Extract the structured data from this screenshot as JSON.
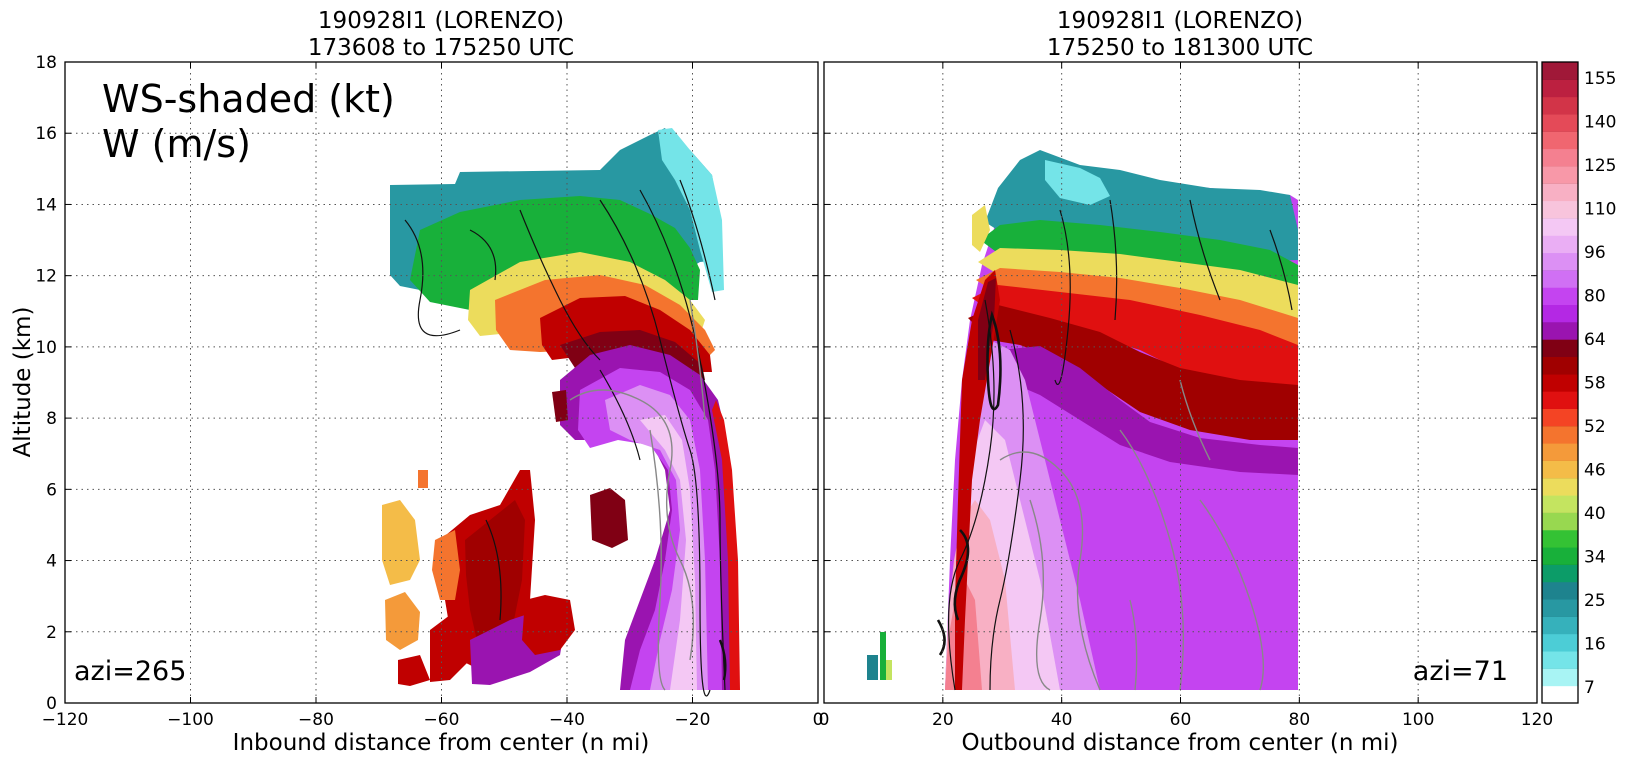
{
  "chart_data": [
    {
      "type": "contour",
      "title": "190928I1 (LORENZO)",
      "subtitle": "173608 to 175250 UTC",
      "annotation": "WS-shaded (kt)",
      "annotation2": "W (m/s)",
      "azimuth_label": "azi=265",
      "xlabel": "Inbound distance from center (n mi)",
      "ylabel": "Altitude (km)",
      "xlim": [
        -120,
        0
      ],
      "ylim": [
        0,
        18
      ],
      "xticks": [
        "−120",
        "−100",
        "−80",
        "−60",
        "−40",
        "−20",
        "0"
      ],
      "yticks": [
        "0",
        "2",
        "4",
        "6",
        "8",
        "10",
        "12",
        "14",
        "16",
        "18"
      ],
      "grid": true
    },
    {
      "type": "contour",
      "title": "190928I1 (LORENZO)",
      "subtitle": "175250 to 181300 UTC",
      "azimuth_label": "azi=71",
      "xlabel": "Outbound distance from center (n mi)",
      "xlim": [
        0,
        120
      ],
      "ylim": [
        0,
        18
      ],
      "xticks": [
        "0",
        "20",
        "40",
        "60",
        "80",
        "100",
        "120"
      ],
      "grid": true
    }
  ],
  "colorbar": {
    "labels": [
      "155",
      "140",
      "125",
      "110",
      "96",
      "80",
      "64",
      "58",
      "52",
      "46",
      "40",
      "34",
      "25",
      "16",
      "7"
    ],
    "colors": [
      "#ffffff",
      "#a8f4f4",
      "#74e4e8",
      "#4ccdd6",
      "#36b1bb",
      "#2898a2",
      "#1e838e",
      "#0c9c68",
      "#18b03a",
      "#34c234",
      "#98d850",
      "#c4e460",
      "#ecdc5c",
      "#f4bc48",
      "#f49a3a",
      "#f4742e",
      "#f44424",
      "#e01010",
      "#c00000",
      "#a00000",
      "#800014",
      "#9a14b0",
      "#b428e4",
      "#c444f0",
      "#d070f4",
      "#dc90f4",
      "#eaaef4",
      "#f4c8f4",
      "#f8c4dc",
      "#f8b0c4",
      "#f898a8",
      "#f48090",
      "#f06670",
      "#e44a58",
      "#d23448",
      "#bc2040",
      "#a01838"
    ]
  }
}
